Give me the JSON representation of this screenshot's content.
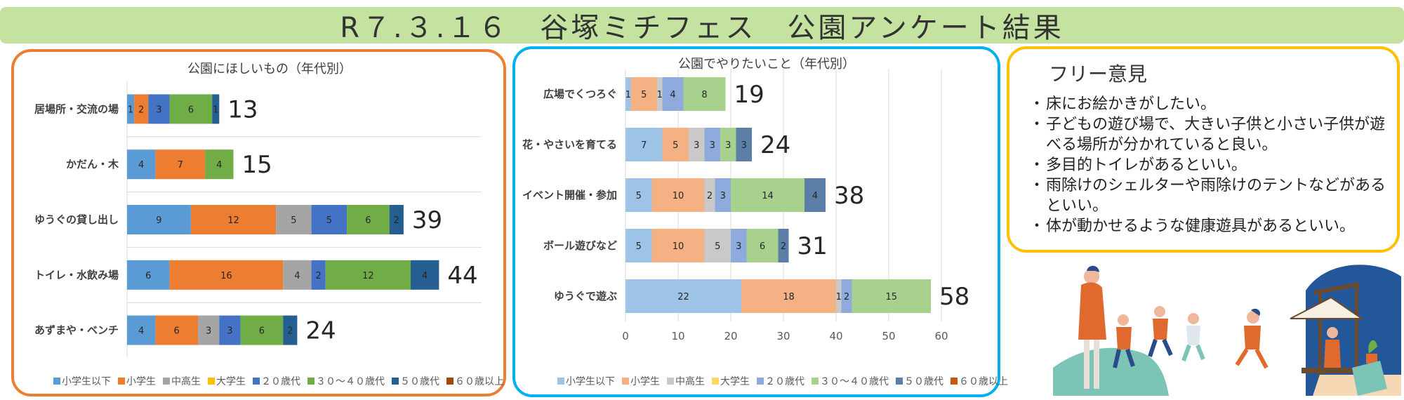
{
  "header": {
    "title": "R７.３.１６　谷塚ミチフェス　公園アンケート結果"
  },
  "colors": {
    "elem_or_below": "#5b9bd5",
    "elementary": "#ed7d31",
    "jr_high_high": "#a5a5a5",
    "university": "#ffc000",
    "twenties": "#4472c4",
    "thirties_forties": "#70ad47",
    "fifties": "#255e91",
    "sixties_plus": "#9e480e"
  },
  "chart_data": [
    {
      "type": "bar",
      "orientation": "horizontal",
      "stacked": true,
      "title": "公園にほしいもの（年代別）",
      "categories": [
        "居場所・交流の場",
        "かだん・木",
        "ゆうぐの貸し出し",
        "トイレ・水飲み場",
        "あずまや・ベンチ"
      ],
      "totals": [
        13,
        15,
        39,
        44,
        24
      ],
      "series": [
        {
          "name": "小学生以下",
          "values": [
            1,
            4,
            9,
            6,
            4
          ]
        },
        {
          "name": "小学生",
          "values": [
            2,
            7,
            12,
            16,
            6
          ]
        },
        {
          "name": "中高生",
          "values": [
            0,
            0,
            5,
            4,
            3
          ]
        },
        {
          "name": "大学生",
          "values": [
            0,
            0,
            0,
            0,
            0
          ]
        },
        {
          "name": "２０歳代",
          "values": [
            3,
            0,
            5,
            2,
            3
          ]
        },
        {
          "name": "３０～４０歳代",
          "values": [
            6,
            4,
            6,
            12,
            6
          ]
        },
        {
          "name": "５０歳代",
          "values": [
            1,
            0,
            2,
            4,
            2
          ]
        },
        {
          "name": "６０歳以上",
          "values": [
            0,
            0,
            0,
            0,
            0
          ]
        }
      ],
      "xlim": [
        0,
        50
      ],
      "legend": "bottom"
    },
    {
      "type": "bar",
      "orientation": "horizontal",
      "stacked": true,
      "title": "公園でやりたいこと（年代別）",
      "categories": [
        "広場でくつろぐ",
        "花・やさいを育てる",
        "イベント開催・参加",
        "ボール遊びなど",
        "ゆうぐで遊ぶ"
      ],
      "totals": [
        19,
        24,
        38,
        31,
        58
      ],
      "series": [
        {
          "name": "小学生以下",
          "values": [
            1,
            7,
            5,
            5,
            22
          ]
        },
        {
          "name": "小学生",
          "values": [
            5,
            5,
            10,
            10,
            18
          ]
        },
        {
          "name": "中高生",
          "values": [
            1,
            3,
            2,
            5,
            1
          ]
        },
        {
          "name": "大学生",
          "values": [
            0,
            0,
            0,
            0,
            0
          ]
        },
        {
          "name": "２０歳代",
          "values": [
            4,
            3,
            3,
            3,
            2
          ]
        },
        {
          "name": "３０～４０歳代",
          "values": [
            8,
            3,
            14,
            6,
            15
          ]
        },
        {
          "name": "５０歳代",
          "values": [
            0,
            3,
            4,
            2,
            0
          ]
        },
        {
          "name": "６０歳以上",
          "values": [
            0,
            0,
            0,
            0,
            0
          ]
        }
      ],
      "xlim": [
        0,
        60
      ],
      "xticks": [
        "0",
        "10",
        "20",
        "30",
        "40",
        "50",
        "60"
      ],
      "grid": true,
      "legend": "bottom"
    }
  ],
  "free_opinions": {
    "title": "フリー意見",
    "items": [
      "床にお絵かきがしたい。",
      "子どもの遊び場で、大きい子供と小さい子供が遊べる場所が分かれていると良い。",
      "多目的トイレがあるといい。",
      "雨除けのシェルターや雨除けのテントなどがあるといい。",
      "体が動かせるような健康遊具があるといい。"
    ]
  }
}
